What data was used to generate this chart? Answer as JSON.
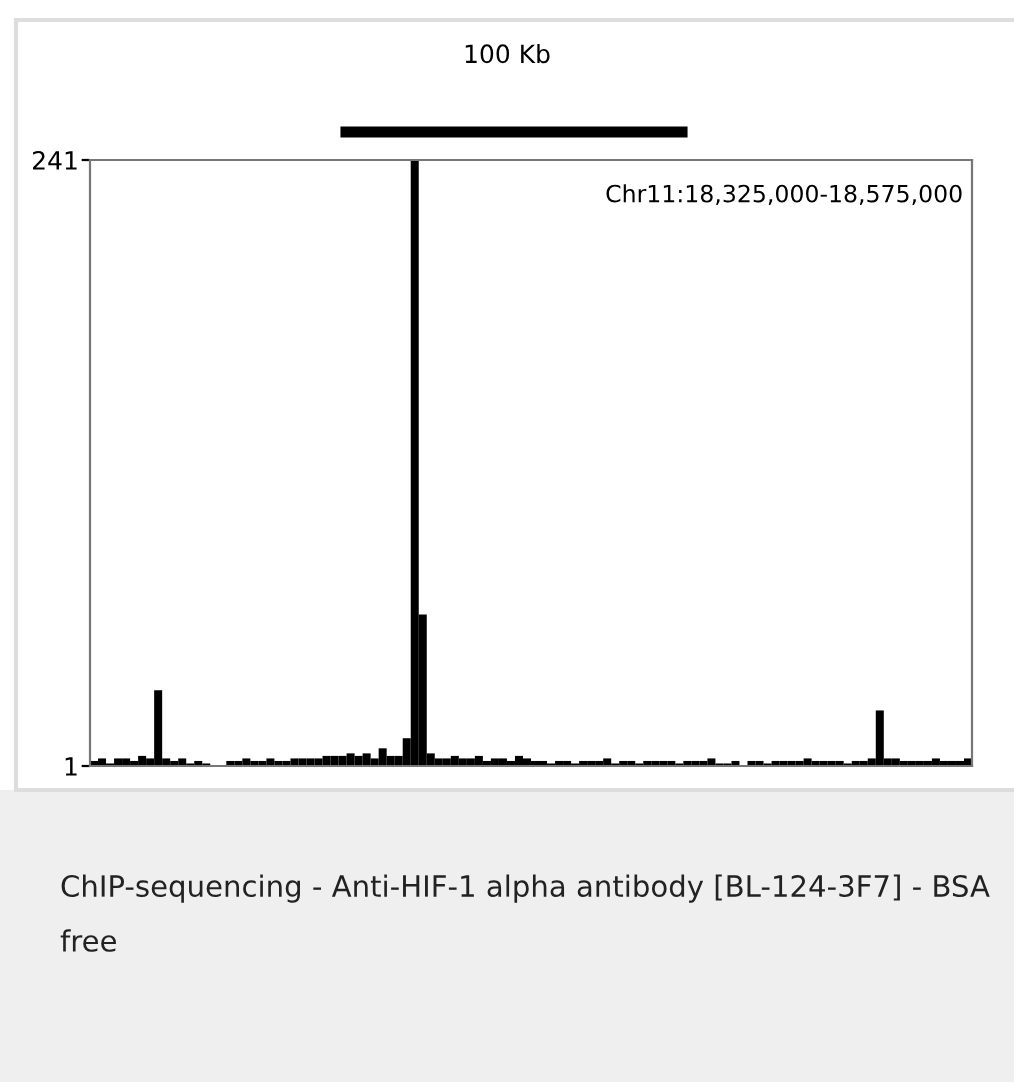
{
  "chart_data": {
    "type": "bar",
    "categories": [
      null,
      null,
      null,
      null,
      null,
      null,
      null,
      null,
      null,
      null,
      null,
      null,
      null,
      null,
      null,
      null,
      null,
      null,
      null,
      null,
      null,
      null,
      null,
      null,
      null,
      null,
      null,
      null,
      null,
      null,
      null,
      null,
      null,
      null,
      null,
      null,
      null,
      null,
      null,
      null,
      null,
      null,
      null,
      null,
      null,
      null,
      null,
      null,
      null,
      null,
      null,
      null,
      null,
      null,
      null,
      null,
      null,
      null,
      null,
      null,
      null,
      null,
      null,
      null,
      null,
      null,
      null,
      null,
      null,
      null,
      null,
      null,
      null,
      null,
      null,
      null,
      null,
      null,
      null,
      null,
      null,
      null,
      null,
      null,
      null,
      null,
      null,
      null,
      null,
      null,
      null,
      null,
      null,
      null,
      null,
      null,
      null,
      null,
      null,
      null,
      null,
      null,
      null,
      null,
      null,
      null,
      null,
      null,
      null,
      null
    ],
    "values": [
      3,
      4,
      2,
      4,
      4,
      3,
      5,
      4,
      31,
      4,
      3,
      4,
      2,
      3,
      2,
      1,
      1,
      3,
      3,
      4,
      3,
      3,
      4,
      3,
      3,
      4,
      4,
      4,
      4,
      5,
      5,
      5,
      6,
      5,
      6,
      4,
      8,
      5,
      5,
      12,
      241,
      61,
      6,
      4,
      4,
      5,
      4,
      4,
      5,
      3,
      4,
      4,
      3,
      5,
      4,
      3,
      3,
      2,
      3,
      3,
      2,
      3,
      3,
      3,
      4,
      2,
      3,
      3,
      2,
      3,
      3,
      3,
      3,
      2,
      3,
      3,
      3,
      4,
      2,
      2,
      3,
      1,
      3,
      3,
      2,
      3,
      3,
      3,
      3,
      4,
      3,
      3,
      3,
      3,
      2,
      3,
      3,
      4,
      23,
      4,
      4,
      3,
      3,
      3,
      3,
      4,
      3,
      3,
      3,
      4
    ],
    "color": "#000000",
    "ylim": [
      1,
      241
    ],
    "yticks": [
      241,
      1
    ],
    "tick_labels": "y",
    "grid": false,
    "annotations": [
      "100 Kb",
      "Chr11:18,325,000-18,575,000",
      "ChIP-sequencing - Anti-HIF-1 alpha antibody [BL-124-3F7] - BSA free"
    ]
  }
}
